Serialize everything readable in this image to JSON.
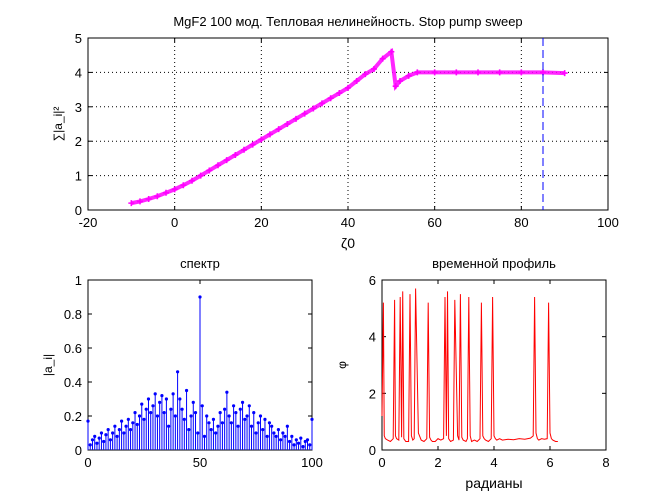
{
  "figure": {
    "background": "#ffffff",
    "axes_color": "#000000"
  },
  "chart_data": [
    {
      "type": "scatter",
      "title": "MgF2 100 мод. Тепловая нелинейность. Stop pump sweep",
      "xlabel": "ζ0",
      "ylabel": "∑|a_i|²",
      "xlim": [
        -20,
        100
      ],
      "ylim": [
        0,
        5
      ],
      "xticks": [
        -20,
        0,
        20,
        40,
        60,
        80,
        100
      ],
      "yticks": [
        0,
        1,
        2,
        3,
        4,
        5
      ],
      "grid": true,
      "color": "#ff00ff",
      "marker": "+",
      "series": [
        {
          "x": [
            -10,
            -8,
            -6,
            -4,
            -2,
            0,
            2,
            4,
            6,
            8,
            10,
            12,
            14,
            16,
            18,
            20,
            22,
            24,
            26,
            28,
            30,
            32,
            34,
            36,
            38,
            40,
            42,
            44,
            46,
            48,
            50,
            51,
            52,
            54,
            56,
            60,
            65,
            70,
            75,
            80,
            85,
            90
          ],
          "y": [
            0.2,
            0.25,
            0.32,
            0.4,
            0.5,
            0.6,
            0.72,
            0.85,
            1.0,
            1.15,
            1.3,
            1.45,
            1.6,
            1.75,
            1.9,
            2.05,
            2.2,
            2.35,
            2.5,
            2.65,
            2.8,
            2.95,
            3.1,
            3.25,
            3.4,
            3.55,
            3.75,
            3.95,
            4.1,
            4.4,
            4.6,
            3.6,
            3.75,
            3.9,
            4.0,
            4.0,
            4.0,
            4.0,
            4.0,
            4.0,
            4.0,
            3.98
          ]
        }
      ],
      "marker_line": {
        "x": 85,
        "style": "dashed",
        "color": "#0000ff"
      }
    },
    {
      "type": "stem",
      "title": "спектр",
      "xlabel": "",
      "ylabel": "|a_i|",
      "xlim": [
        0,
        100
      ],
      "ylim": [
        0,
        1
      ],
      "xticks": [
        0,
        50,
        100
      ],
      "yticks": [
        0,
        0.2,
        0.4,
        0.6,
        0.8,
        1
      ],
      "color": "#0000ff",
      "series": [
        {
          "x": [
            0,
            1,
            2,
            3,
            4,
            5,
            6,
            7,
            8,
            9,
            10,
            11,
            12,
            13,
            14,
            15,
            16,
            17,
            18,
            19,
            20,
            21,
            22,
            23,
            24,
            25,
            26,
            27,
            28,
            29,
            30,
            31,
            32,
            33,
            34,
            35,
            36,
            37,
            38,
            39,
            40,
            41,
            42,
            43,
            44,
            45,
            46,
            47,
            48,
            49,
            50,
            51,
            52,
            53,
            54,
            55,
            56,
            57,
            58,
            59,
            60,
            61,
            62,
            63,
            64,
            65,
            66,
            67,
            68,
            69,
            70,
            71,
            72,
            73,
            74,
            75,
            76,
            77,
            78,
            79,
            80,
            81,
            82,
            83,
            84,
            85,
            86,
            87,
            88,
            89,
            90,
            91,
            92,
            93,
            94,
            95,
            96,
            97,
            98,
            99,
            100
          ],
          "y": [
            0.17,
            0.03,
            0.06,
            0.08,
            0.04,
            0.07,
            0.1,
            0.05,
            0.09,
            0.12,
            0.06,
            0.1,
            0.14,
            0.08,
            0.12,
            0.17,
            0.1,
            0.14,
            0.18,
            0.12,
            0.16,
            0.22,
            0.15,
            0.2,
            0.27,
            0.18,
            0.24,
            0.3,
            0.22,
            0.26,
            0.33,
            0.2,
            0.28,
            0.32,
            0.22,
            0.3,
            0.14,
            0.24,
            0.33,
            0.2,
            0.46,
            0.3,
            0.24,
            0.18,
            0.35,
            0.12,
            0.2,
            0.28,
            0.22,
            0.1,
            0.9,
            0.26,
            0.08,
            0.2,
            0.16,
            0.12,
            0.18,
            0.1,
            0.14,
            0.22,
            0.16,
            0.24,
            0.34,
            0.2,
            0.16,
            0.26,
            0.22,
            0.14,
            0.24,
            0.28,
            0.18,
            0.2,
            0.26,
            0.14,
            0.22,
            0.1,
            0.16,
            0.2,
            0.12,
            0.18,
            0.08,
            0.16,
            0.14,
            0.1,
            0.08,
            0.12,
            0.06,
            0.1,
            0.08,
            0.14,
            0.05,
            0.08,
            0.03,
            0.06,
            0.04,
            0.07,
            0.02,
            0.05,
            0.06,
            0.03,
            0.18
          ]
        }
      ]
    },
    {
      "type": "line",
      "title": "временной профиль",
      "xlabel": "радианы",
      "ylabel": "φ",
      "xlim": [
        0,
        8
      ],
      "ylim": [
        0,
        6
      ],
      "xticks": [
        0,
        2,
        4,
        6,
        8
      ],
      "yticks": [
        0,
        2,
        4,
        6
      ],
      "color": "#ff0000",
      "series": [
        {
          "x": [
            0.0,
            0.05,
            0.08,
            0.12,
            0.2,
            0.3,
            0.4,
            0.45,
            0.48,
            0.52,
            0.6,
            0.65,
            0.7,
            0.74,
            0.78,
            0.85,
            0.95,
            1.0,
            1.05,
            1.1,
            1.15,
            1.2,
            1.3,
            1.4,
            1.5,
            1.6,
            1.65,
            1.7,
            1.75,
            1.8,
            1.9,
            2.0,
            2.1,
            2.2,
            2.25,
            2.3,
            2.34,
            2.38,
            2.45,
            2.55,
            2.6,
            2.7,
            2.75,
            2.8,
            2.85,
            2.9,
            3.0,
            3.05,
            3.1,
            3.15,
            3.2,
            3.3,
            3.4,
            3.5,
            3.55,
            3.6,
            3.65,
            3.7,
            3.8,
            3.9,
            3.95,
            4.0,
            4.05,
            4.1,
            4.2,
            4.3,
            4.5,
            4.7,
            4.9,
            5.1,
            5.3,
            5.4,
            5.45,
            5.5,
            5.55,
            5.6,
            5.7,
            5.8,
            5.9,
            5.95,
            6.0,
            6.05,
            6.1,
            6.2,
            6.28
          ],
          "y": [
            1.2,
            5.2,
            0.5,
            0.4,
            0.35,
            0.3,
            0.4,
            5.3,
            0.5,
            0.4,
            0.35,
            5.4,
            0.45,
            5.6,
            0.4,
            0.3,
            0.3,
            5.5,
            0.5,
            0.35,
            0.4,
            5.7,
            0.6,
            0.35,
            0.3,
            0.4,
            5.2,
            0.45,
            0.35,
            0.3,
            0.3,
            0.4,
            0.35,
            0.4,
            5.4,
            0.5,
            5.6,
            0.4,
            0.3,
            0.35,
            5.3,
            0.5,
            0.35,
            5.5,
            0.45,
            0.35,
            0.3,
            0.4,
            5.4,
            0.5,
            0.3,
            0.35,
            0.3,
            0.4,
            5.2,
            0.5,
            0.4,
            0.35,
            0.3,
            0.4,
            5.4,
            0.5,
            0.4,
            0.35,
            0.4,
            0.35,
            0.38,
            0.36,
            0.4,
            0.38,
            0.42,
            0.5,
            5.4,
            0.6,
            0.4,
            0.35,
            0.4,
            0.38,
            0.4,
            5.2,
            0.6,
            0.4,
            0.35,
            0.3,
            0.3
          ]
        }
      ]
    }
  ]
}
